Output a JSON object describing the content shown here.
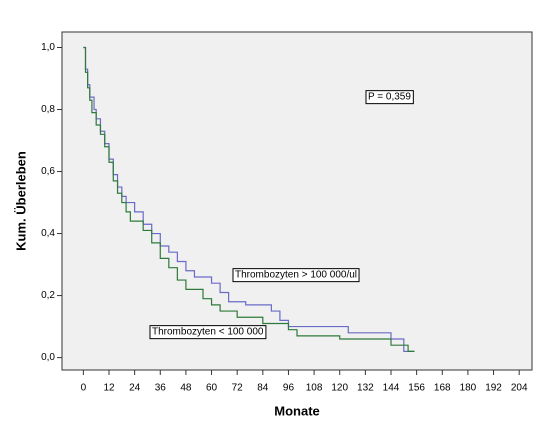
{
  "chart_data": {
    "type": "step",
    "x_label": "Monate",
    "y_label": "Kum. Überleben",
    "annotation": "P = 0,359",
    "xlim": [
      -10,
      210
    ],
    "ylim": [
      -0.04,
      1.05
    ],
    "xticks": [
      0,
      12,
      24,
      36,
      48,
      60,
      72,
      84,
      96,
      108,
      120,
      132,
      144,
      156,
      168,
      180,
      192,
      204
    ],
    "yticks": [
      {
        "value": 0,
        "label": "0,0"
      },
      {
        "value": 0.2,
        "label": "0,2"
      },
      {
        "value": 0.4,
        "label": "0,4"
      },
      {
        "value": 0.6,
        "label": "0,6"
      },
      {
        "value": 0.8,
        "label": "0,8"
      },
      {
        "value": 1,
        "label": "1,0"
      }
    ],
    "series": [
      {
        "name": "Thrombozyten > 100 000/ul",
        "color": "#6a6ac8",
        "x": [
          0,
          1,
          2,
          3,
          5,
          6,
          8,
          10,
          12,
          14,
          16,
          18,
          20,
          24,
          28,
          32,
          36,
          40,
          44,
          48,
          52,
          60,
          64,
          68,
          76,
          88,
          92,
          96,
          124,
          144,
          150,
          155
        ],
        "values": [
          1.0,
          0.93,
          0.88,
          0.84,
          0.8,
          0.77,
          0.73,
          0.69,
          0.64,
          0.59,
          0.55,
          0.52,
          0.5,
          0.47,
          0.43,
          0.4,
          0.36,
          0.34,
          0.31,
          0.28,
          0.26,
          0.24,
          0.21,
          0.18,
          0.17,
          0.15,
          0.12,
          0.1,
          0.08,
          0.06,
          0.02,
          0.02
        ]
      },
      {
        "name": "Thrombozyten < 100 000",
        "color": "#2e7a3a",
        "x": [
          0,
          1,
          2,
          3,
          4,
          6,
          8,
          10,
          12,
          14,
          16,
          18,
          20,
          22,
          28,
          32,
          36,
          40,
          44,
          48,
          56,
          60,
          64,
          72,
          84,
          96,
          100,
          120,
          144,
          152,
          155
        ],
        "values": [
          1.0,
          0.92,
          0.87,
          0.83,
          0.79,
          0.75,
          0.72,
          0.68,
          0.63,
          0.57,
          0.53,
          0.5,
          0.47,
          0.44,
          0.41,
          0.37,
          0.32,
          0.29,
          0.25,
          0.22,
          0.19,
          0.17,
          0.15,
          0.13,
          0.11,
          0.09,
          0.07,
          0.06,
          0.04,
          0.02,
          0.02
        ]
      }
    ]
  }
}
